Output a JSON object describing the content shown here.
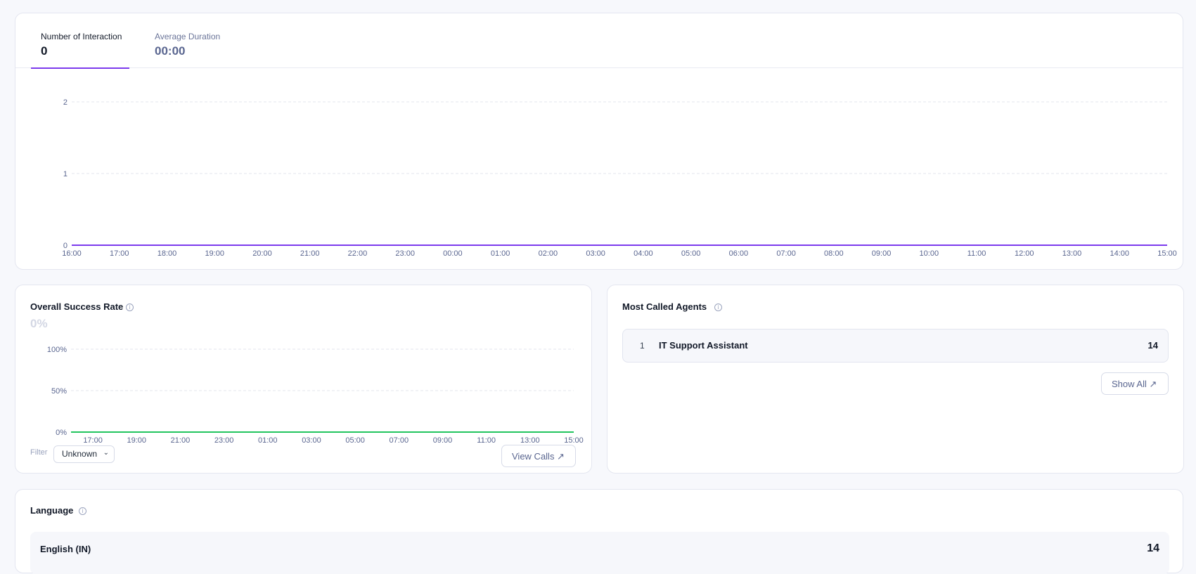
{
  "interactions_card": {
    "tabs": [
      {
        "label": "Number of Interaction",
        "value": "0",
        "active": true
      },
      {
        "label": "Average Duration",
        "value": "00:00",
        "active": false
      }
    ]
  },
  "success_card": {
    "title": "Overall Success Rate",
    "info_icon": "info-icon",
    "value": "0%",
    "filter_label": "Filter",
    "filter_value": "Unknown",
    "view_calls_label": "View Calls ↗"
  },
  "agents_card": {
    "title": "Most Called Agents",
    "info_icon": "info-icon",
    "agents": [
      {
        "rank": "1",
        "name": "IT Support Assistant",
        "count": "14"
      }
    ],
    "show_all_label": "Show All ↗"
  },
  "language_card": {
    "title": "Language",
    "info_icon": "info-icon",
    "languages": [
      {
        "name": "English (IN)",
        "count": "14"
      }
    ]
  },
  "colors": {
    "accent": "#7c3aed",
    "success_line": "#22c55e"
  },
  "chart_data": [
    {
      "type": "line",
      "x": [
        "16:00",
        "17:00",
        "18:00",
        "19:00",
        "20:00",
        "21:00",
        "22:00",
        "23:00",
        "00:00",
        "01:00",
        "02:00",
        "03:00",
        "04:00",
        "05:00",
        "06:00",
        "07:00",
        "08:00",
        "09:00",
        "10:00",
        "11:00",
        "12:00",
        "13:00",
        "14:00",
        "15:00"
      ],
      "series": [
        {
          "values": [
            0,
            0,
            0,
            0,
            0,
            0,
            0,
            0,
            0,
            0,
            0,
            0,
            0,
            0,
            0,
            0,
            0,
            0,
            0,
            0,
            0,
            0,
            0,
            0
          ]
        }
      ],
      "y_ticks": [
        "0",
        "1",
        "2"
      ],
      "ylim": [
        0,
        2
      ],
      "grid": true,
      "color": "#7c3aed"
    },
    {
      "type": "line",
      "x": [
        "16:00",
        "17:00",
        "18:00",
        "19:00",
        "20:00",
        "21:00",
        "22:00",
        "23:00",
        "00:00",
        "01:00",
        "02:00",
        "03:00",
        "04:00",
        "05:00",
        "06:00",
        "07:00",
        "08:00",
        "09:00",
        "10:00",
        "11:00",
        "12:00",
        "13:00",
        "14:00",
        "15:00"
      ],
      "x_tick_labels": [
        "17:00",
        "19:00",
        "21:00",
        "23:00",
        "01:00",
        "03:00",
        "05:00",
        "07:00",
        "09:00",
        "11:00",
        "13:00",
        "15:00"
      ],
      "series": [
        {
          "values": [
            0,
            0,
            0,
            0,
            0,
            0,
            0,
            0,
            0,
            0,
            0,
            0,
            0,
            0,
            0,
            0,
            0,
            0,
            0,
            0,
            0,
            0,
            0,
            0
          ]
        }
      ],
      "y_ticks": [
        "0%",
        "50%",
        "100%"
      ],
      "ylim": [
        0,
        100
      ],
      "grid": true,
      "color": "#22c55e"
    }
  ]
}
